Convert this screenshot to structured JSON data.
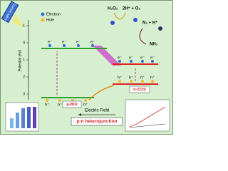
{
  "axis": {
    "label": "Potential (eV)",
    "ticks": [
      -1,
      0,
      1,
      2,
      3
    ]
  },
  "light_source": "Light source",
  "legend": {
    "electron": "Electron",
    "hole": "Hole"
  },
  "electron": "e⁻",
  "hole": "h⁺",
  "semiconductors": [
    "p-BOI",
    "n-ZCIS"
  ],
  "reactions": {
    "h2o2": "H₂O₂",
    "products": "2H⁺ + O₂",
    "n2": "N₂ + H⁺",
    "nh3": "NH₃"
  },
  "field": "Electric Field",
  "junction": "p-n heterojunction"
}
